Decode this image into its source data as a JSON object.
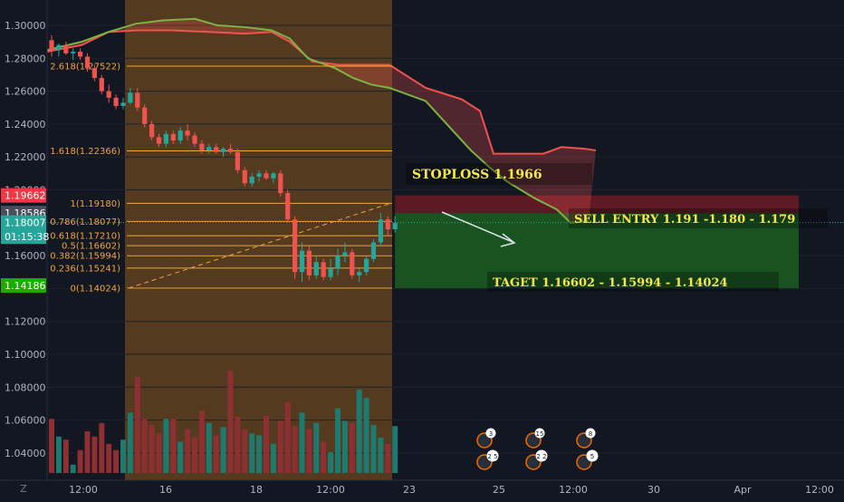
{
  "chart_data": {
    "type": "candlestick",
    "title": "",
    "ylim": [
      1.024,
      1.307
    ],
    "yticks": [
      "1.30000",
      "1.28000",
      "1.26000",
      "1.24000",
      "1.22000",
      "1.20000",
      "1.18000",
      "1.16000",
      "1.14000",
      "1.12000",
      "1.10000",
      "1.08000",
      "1.06000",
      "1.04000"
    ],
    "xticks": [
      "12:00",
      "16",
      "18",
      "12:00",
      "23",
      "25",
      "12:00",
      "30",
      "Apr",
      "12:00"
    ],
    "colors": {
      "bg": "#131722",
      "up": "#26a69a",
      "down": "#ef5350",
      "fib": "#f2a33a",
      "cloud_lead": "#ef5350",
      "cloud_lag": "#7cb342",
      "stop_zone": "#6b1a24",
      "target_zone": "#1b5e20",
      "axis_text": "#b2b5be"
    },
    "badges": [
      {
        "label": "1.19662",
        "price": 1.19662,
        "color": "#f23645"
      },
      {
        "label": "1.18586",
        "price": 1.18586,
        "color": "#4a4e5a"
      },
      {
        "label": "1.18007",
        "price": 1.18007,
        "color": "#26a69a"
      },
      {
        "label": "01:15:38",
        "price": 1.1715,
        "color": "#26a69a"
      },
      {
        "label": "1.14186",
        "price": 1.14186,
        "color": "#1faa00"
      }
    ],
    "fib_levels": [
      {
        "label": "2.618(1.27522)",
        "price": 1.27522
      },
      {
        "label": "1.618(1.22366)",
        "price": 1.22366
      },
      {
        "label": "1(1.19180)",
        "price": 1.1918
      },
      {
        "label": "0.786(1.18077)",
        "price": 1.18077
      },
      {
        "label": "0.618(1.17210)",
        "price": 1.1721
      },
      {
        "label": "0.5(1.16602)",
        "price": 1.16602
      },
      {
        "label": "0.382(1.15994)",
        "price": 1.15994
      },
      {
        "label": "0.236(1.15241)",
        "price": 1.15241
      },
      {
        "label": "0(1.14024)",
        "price": 1.14024
      }
    ],
    "annotations": {
      "stoploss": "STOPLOSS 1.1966",
      "entry": "SELL ENTRY 1.191 -1.180 - 1.179",
      "target": "TAGET 1.16602 - 1.15994 - 1.14024"
    },
    "events": [
      {
        "top": "3",
        "bottom": "2 5"
      },
      {
        "top": "15",
        "bottom": "2 2"
      },
      {
        "top": "8",
        "bottom": "5"
      }
    ],
    "scale_mode": "Z",
    "candles": [
      [
        1.291,
        1.294,
        1.281,
        1.285
      ],
      [
        1.285,
        1.289,
        1.281,
        1.288
      ],
      [
        1.288,
        1.29,
        1.282,
        1.283
      ],
      [
        1.283,
        1.286,
        1.279,
        1.284
      ],
      [
        1.284,
        1.286,
        1.279,
        1.281
      ],
      [
        1.281,
        1.283,
        1.272,
        1.274
      ],
      [
        1.274,
        1.276,
        1.266,
        1.268
      ],
      [
        1.268,
        1.27,
        1.258,
        1.26
      ],
      [
        1.26,
        1.264,
        1.253,
        1.256
      ],
      [
        1.256,
        1.258,
        1.249,
        1.251
      ],
      [
        1.251,
        1.256,
        1.249,
        1.253
      ],
      [
        1.253,
        1.262,
        1.252,
        1.259
      ],
      [
        1.259,
        1.262,
        1.248,
        1.25
      ],
      [
        1.25,
        1.252,
        1.238,
        1.24
      ],
      [
        1.24,
        1.242,
        1.23,
        1.232
      ],
      [
        1.232,
        1.234,
        1.226,
        1.228
      ],
      [
        1.228,
        1.236,
        1.226,
        1.234
      ],
      [
        1.234,
        1.236,
        1.228,
        1.23
      ],
      [
        1.23,
        1.238,
        1.228,
        1.236
      ],
      [
        1.236,
        1.24,
        1.23,
        1.233
      ],
      [
        1.233,
        1.235,
        1.226,
        1.228
      ],
      [
        1.228,
        1.23,
        1.222,
        1.224
      ],
      [
        1.224,
        1.228,
        1.222,
        1.226
      ],
      [
        1.226,
        1.228,
        1.222,
        1.223
      ],
      [
        1.223,
        1.226,
        1.22,
        1.225
      ],
      [
        1.225,
        1.228,
        1.222,
        1.223
      ],
      [
        1.223,
        1.225,
        1.21,
        1.212
      ],
      [
        1.212,
        1.214,
        1.202,
        1.204
      ],
      [
        1.204,
        1.21,
        1.202,
        1.208
      ],
      [
        1.208,
        1.212,
        1.205,
        1.21
      ],
      [
        1.21,
        1.212,
        1.206,
        1.207
      ],
      [
        1.207,
        1.211,
        1.204,
        1.21
      ],
      [
        1.21,
        1.212,
        1.196,
        1.198
      ],
      [
        1.198,
        1.2,
        1.18,
        1.182
      ],
      [
        1.182,
        1.184,
        1.146,
        1.15
      ],
      [
        1.15,
        1.168,
        1.144,
        1.163
      ],
      [
        1.163,
        1.166,
        1.145,
        1.148
      ],
      [
        1.148,
        1.16,
        1.146,
        1.156
      ],
      [
        1.156,
        1.158,
        1.145,
        1.147
      ],
      [
        1.147,
        1.158,
        1.145,
        1.152
      ],
      [
        1.152,
        1.164,
        1.148,
        1.16
      ],
      [
        1.16,
        1.168,
        1.156,
        1.162
      ],
      [
        1.162,
        1.164,
        1.146,
        1.148
      ],
      [
        1.148,
        1.152,
        1.144,
        1.15
      ],
      [
        1.15,
        1.16,
        1.148,
        1.158
      ],
      [
        1.158,
        1.17,
        1.156,
        1.168
      ],
      [
        1.168,
        1.186,
        1.166,
        1.182
      ],
      [
        1.182,
        1.184,
        1.172,
        1.176
      ],
      [
        1.176,
        1.184,
        1.174,
        1.18
      ]
    ],
    "volume": [
      0.52,
      0.35,
      0.32,
      0.08,
      0.22,
      0.4,
      0.35,
      0.48,
      0.28,
      0.22,
      0.32,
      0.58,
      0.92,
      0.52,
      0.46,
      0.38,
      0.52,
      0.52,
      0.3,
      0.42,
      0.34,
      0.6,
      0.48,
      0.36,
      0.44,
      0.98,
      0.54,
      0.42,
      0.38,
      0.36,
      0.55,
      0.28,
      0.5,
      0.68,
      0.45,
      0.58,
      0.42,
      0.48,
      0.3,
      0.2,
      0.62,
      0.5,
      0.48,
      0.8,
      0.72,
      0.46,
      0.34,
      0.28,
      0.45
    ]
  }
}
